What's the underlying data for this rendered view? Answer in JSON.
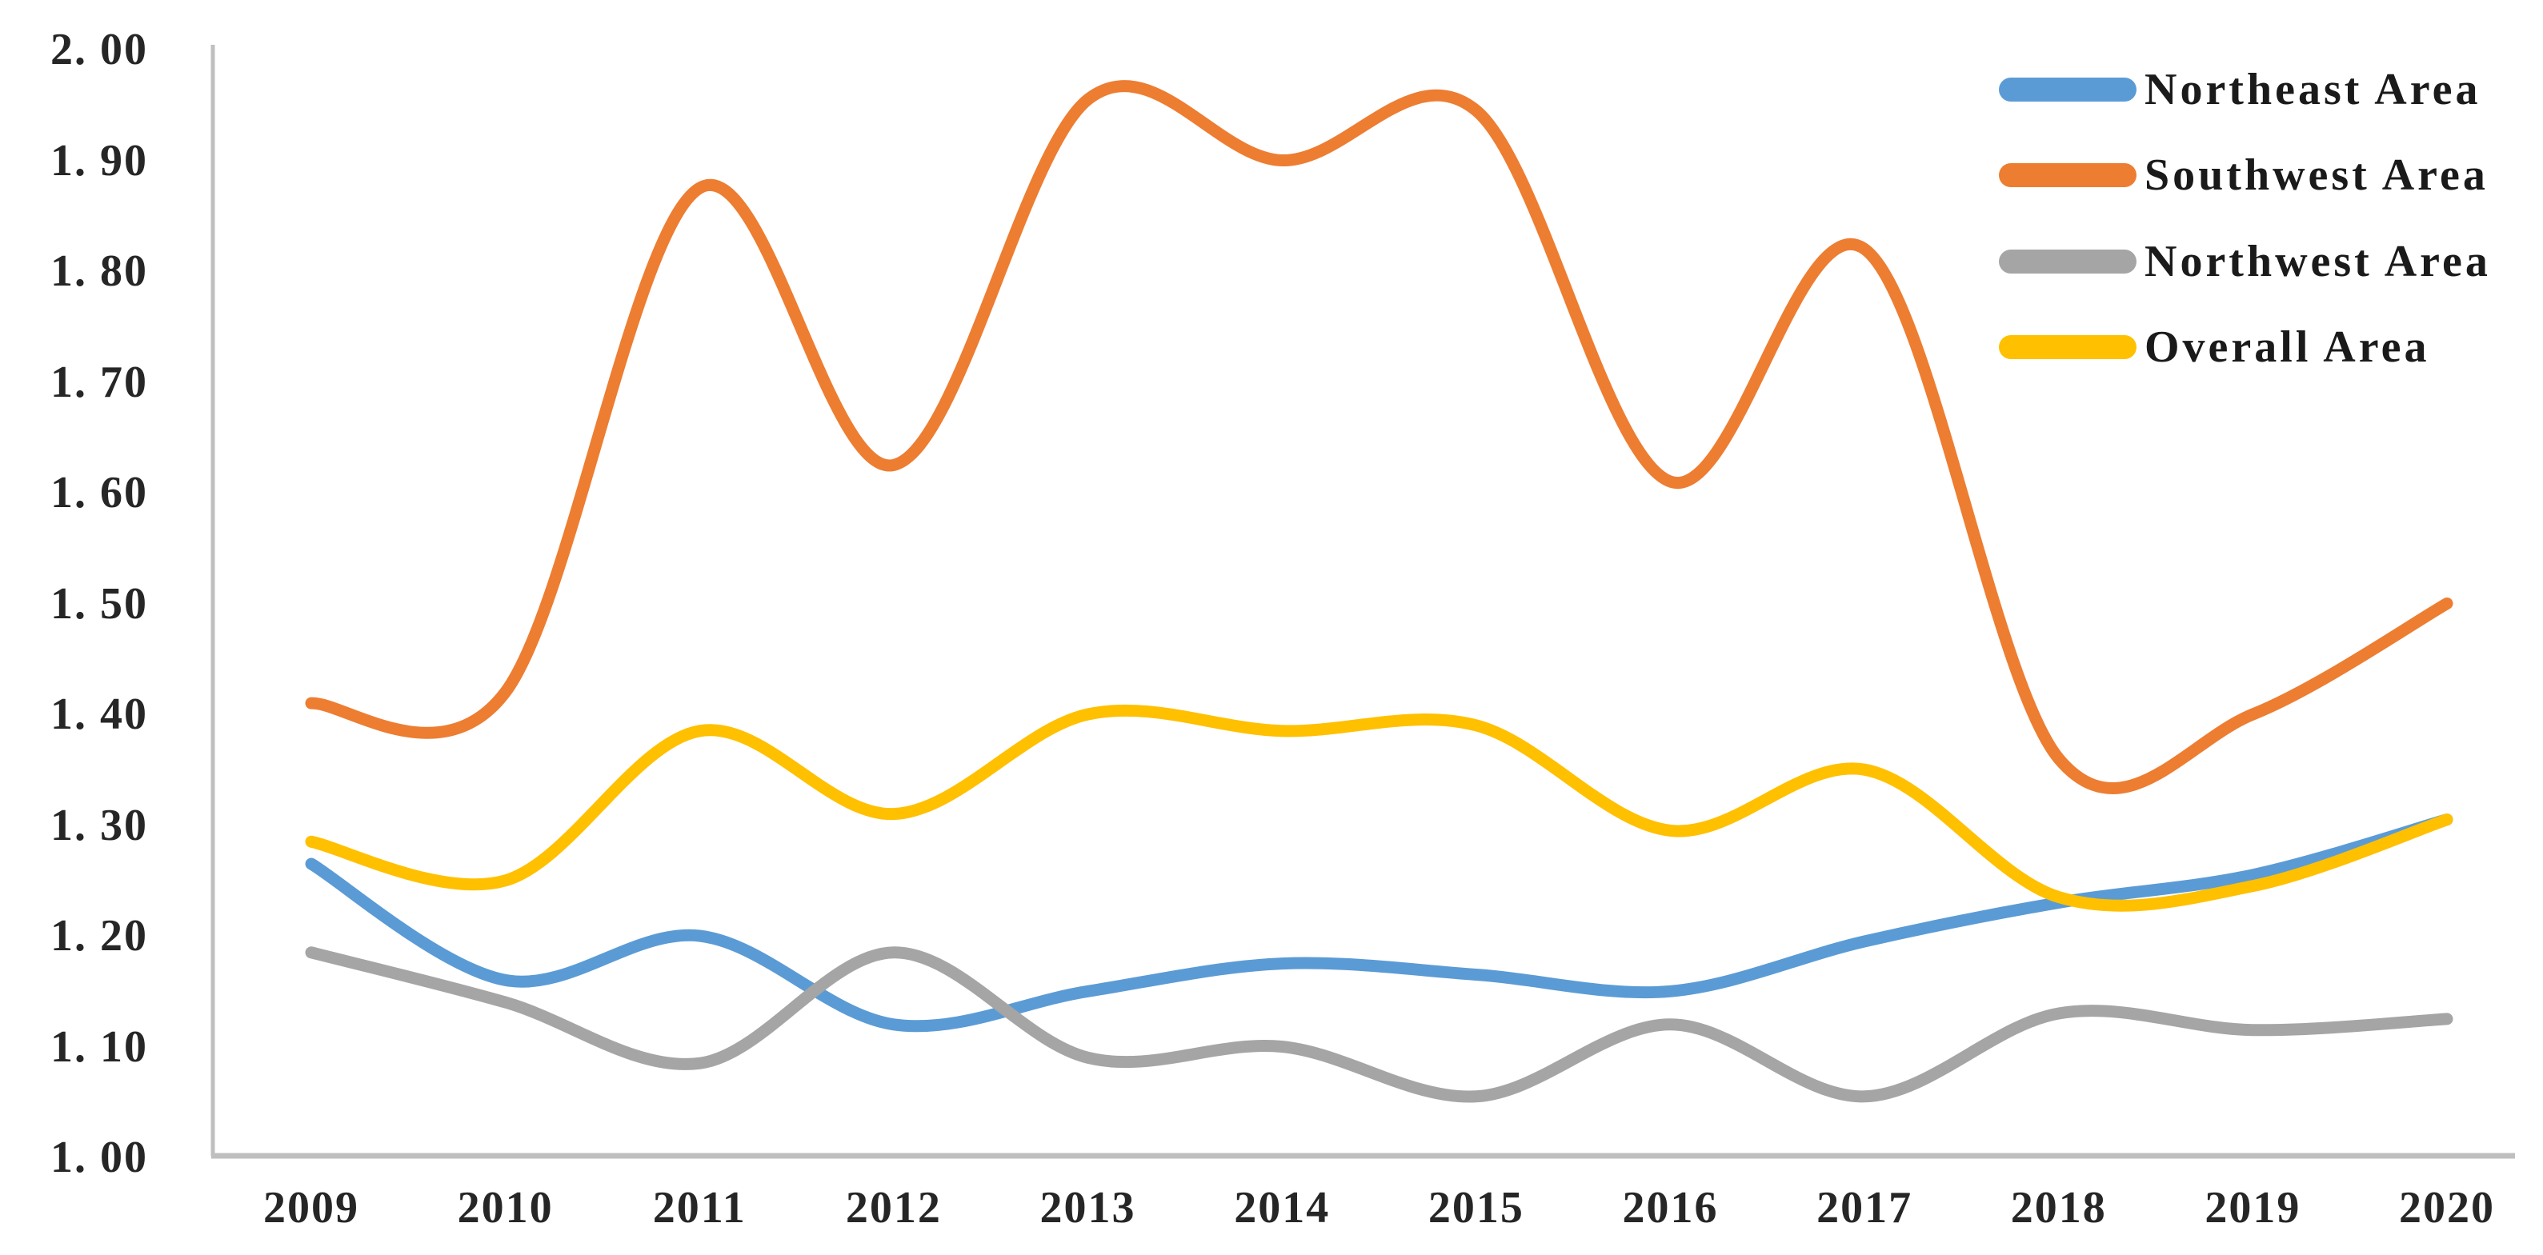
{
  "chart_data": {
    "type": "line",
    "title": "",
    "xlabel": "",
    "ylabel": "",
    "categories": [
      "2009",
      "2010",
      "2011",
      "2012",
      "2013",
      "2014",
      "2015",
      "2016",
      "2017",
      "2018",
      "2019",
      "2020"
    ],
    "series": [
      {
        "name": "Northeast Area",
        "color": "#5B9BD5",
        "values": [
          1.265,
          1.16,
          1.2,
          1.12,
          1.15,
          1.175,
          1.165,
          1.15,
          1.195,
          1.23,
          1.255,
          1.305
        ]
      },
      {
        "name": "Southwest Area",
        "color": "#ED7D31",
        "values": [
          1.41,
          1.42,
          1.875,
          1.625,
          1.955,
          1.9,
          1.945,
          1.61,
          1.82,
          1.36,
          1.4,
          1.5
        ]
      },
      {
        "name": "Northwest Area",
        "color": "#A5A5A5",
        "values": [
          1.185,
          1.14,
          1.085,
          1.185,
          1.09,
          1.1,
          1.055,
          1.12,
          1.055,
          1.13,
          1.115,
          1.125
        ]
      },
      {
        "name": "Overall Area",
        "color": "#FFC000",
        "values": [
          1.285,
          1.25,
          1.385,
          1.31,
          1.4,
          1.385,
          1.39,
          1.295,
          1.35,
          1.235,
          1.245,
          1.305
        ]
      }
    ],
    "ylim": [
      1.0,
      2.0
    ],
    "yticks": [
      1.0,
      1.1,
      1.2,
      1.3,
      1.4,
      1.5,
      1.6,
      1.7,
      1.8,
      1.9,
      2.0
    ],
    "grid": false,
    "smooth": true,
    "legend_position": "top-right",
    "line_width": 15
  },
  "axis": {
    "y_labels": [
      "2. 00",
      "1. 90",
      "1. 80",
      "1. 70",
      "1. 60",
      "1. 50",
      "1. 40",
      "1. 30",
      "1. 20",
      "1. 10",
      "1. 00"
    ],
    "x_labels": [
      "2009",
      "2010",
      "2011",
      "2012",
      "2013",
      "2014",
      "2015",
      "2016",
      "2017",
      "2018",
      "2019",
      "2020"
    ]
  },
  "legend": {
    "items": [
      {
        "label": "Northeast Area",
        "color": "#5B9BD5"
      },
      {
        "label": "Southwest Area",
        "color": "#ED7D31"
      },
      {
        "label": "Northwest Area",
        "color": "#A5A5A5"
      },
      {
        "label": "Overall Area",
        "color": "#FFC000"
      }
    ]
  },
  "colors": {
    "axis_line": "#BFBFBF",
    "text": "#262626",
    "background": "#FFFFFF"
  }
}
